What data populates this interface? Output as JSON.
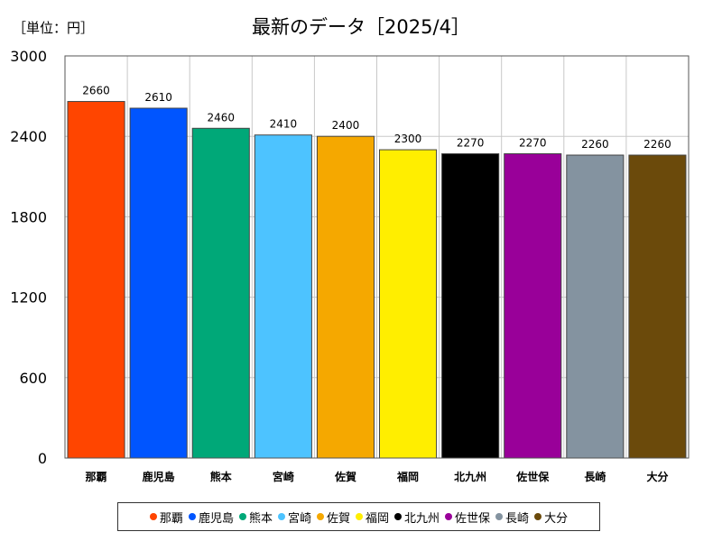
{
  "unit_label": "［単位：円］",
  "chart_data": {
    "type": "bar",
    "title": "最新のデータ［2025/4］",
    "categories": [
      "那覇",
      "鹿児島",
      "熊本",
      "宮崎",
      "佐賀",
      "福岡",
      "北九州",
      "佐世保",
      "長崎",
      "大分"
    ],
    "values": [
      2660,
      2610,
      2460,
      2410,
      2400,
      2300,
      2270,
      2270,
      2260,
      2260
    ],
    "colors": [
      "#ff4500",
      "#0055ff",
      "#00a878",
      "#4dc3ff",
      "#f5a800",
      "#ffee00",
      "#000000",
      "#990099",
      "#8493a0",
      "#6b4a0b"
    ],
    "ylim": [
      0,
      3000
    ],
    "yticks": [
      0,
      600,
      1200,
      1800,
      2400,
      3000
    ],
    "grid": true,
    "legend_position": "bottom",
    "xlabel": "",
    "ylabel": ""
  }
}
